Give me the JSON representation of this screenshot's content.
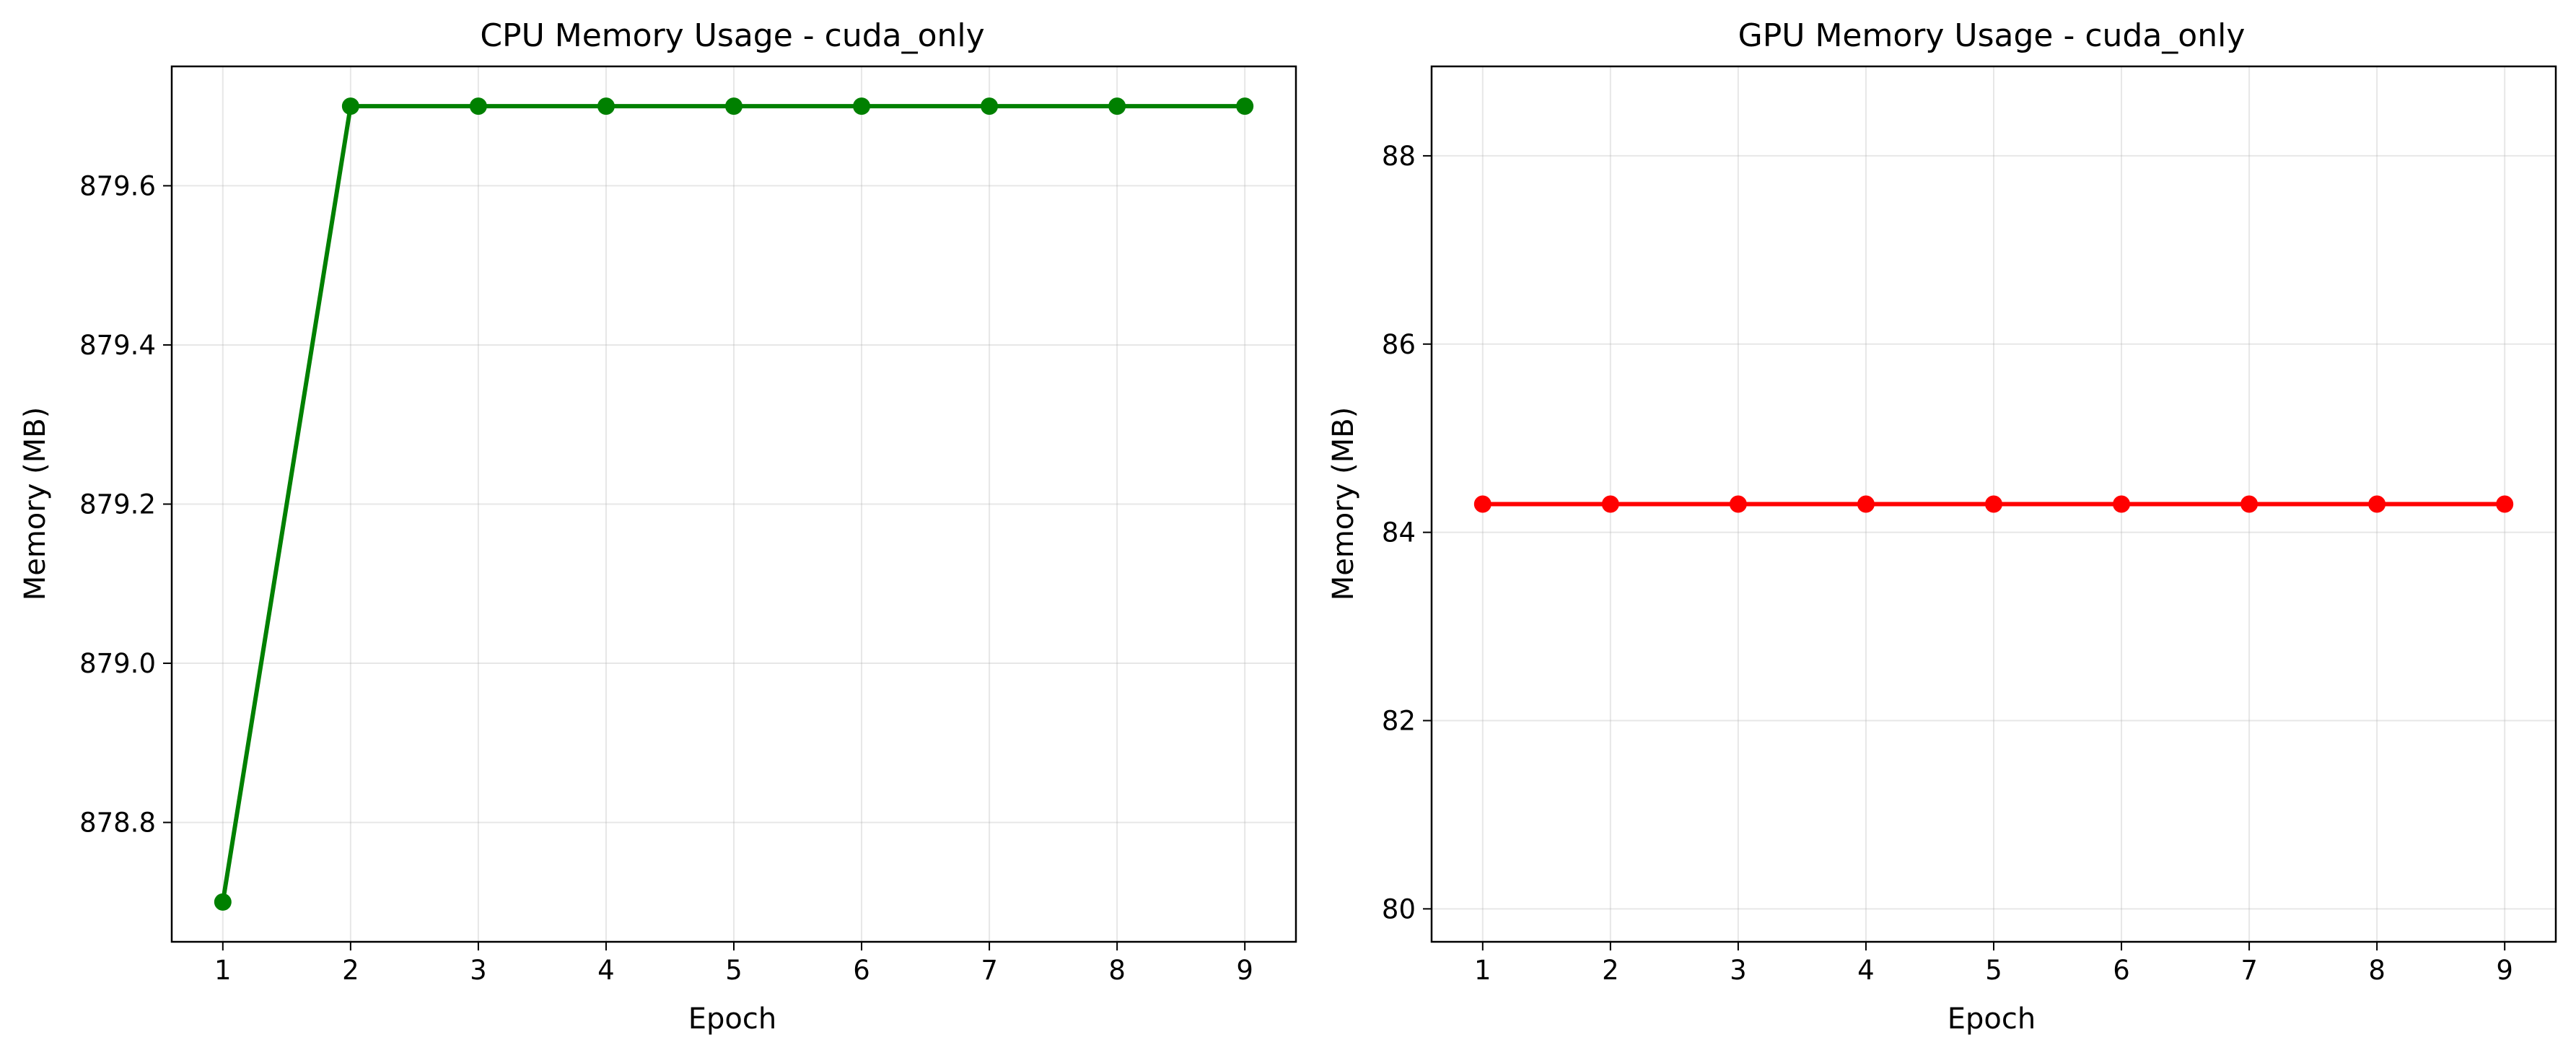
{
  "chart_data": [
    {
      "type": "line",
      "title": "CPU Memory Usage - cuda_only",
      "xlabel": "Epoch",
      "ylabel": "Memory (MB)",
      "grid": true,
      "xlim": [
        0.6,
        9.4
      ],
      "ylim": [
        878.65,
        879.75
      ],
      "x_ticks": [
        1,
        2,
        3,
        4,
        5,
        6,
        7,
        8,
        9
      ],
      "y_ticks": [
        878.8,
        879.0,
        879.2,
        879.4,
        879.6
      ],
      "x_tick_labels": [
        "1",
        "2",
        "3",
        "4",
        "5",
        "6",
        "7",
        "8",
        "9"
      ],
      "y_tick_labels": [
        "878.8",
        "879.0",
        "879.2",
        "879.4",
        "879.6"
      ],
      "color": "#008000",
      "series": [
        {
          "x": [
            1,
            2,
            3,
            4,
            5,
            6,
            7,
            8,
            9
          ],
          "values": [
            878.7,
            879.7,
            879.7,
            879.7,
            879.7,
            879.7,
            879.7,
            879.7,
            879.7
          ]
        }
      ]
    },
    {
      "type": "line",
      "title": "GPU Memory Usage - cuda_only",
      "xlabel": "Epoch",
      "ylabel": "Memory (MB)",
      "grid": true,
      "xlim": [
        0.6,
        9.4
      ],
      "ylim": [
        79.65,
        88.95
      ],
      "x_ticks": [
        1,
        2,
        3,
        4,
        5,
        6,
        7,
        8,
        9
      ],
      "y_ticks": [
        80,
        82,
        84,
        86,
        88
      ],
      "x_tick_labels": [
        "1",
        "2",
        "3",
        "4",
        "5",
        "6",
        "7",
        "8",
        "9"
      ],
      "y_tick_labels": [
        "80",
        "82",
        "84",
        "86",
        "88"
      ],
      "color": "#ff0000",
      "series": [
        {
          "x": [
            1,
            2,
            3,
            4,
            5,
            6,
            7,
            8,
            9
          ],
          "values": [
            84.3,
            84.3,
            84.3,
            84.3,
            84.3,
            84.3,
            84.3,
            84.3,
            84.3
          ]
        }
      ]
    }
  ]
}
